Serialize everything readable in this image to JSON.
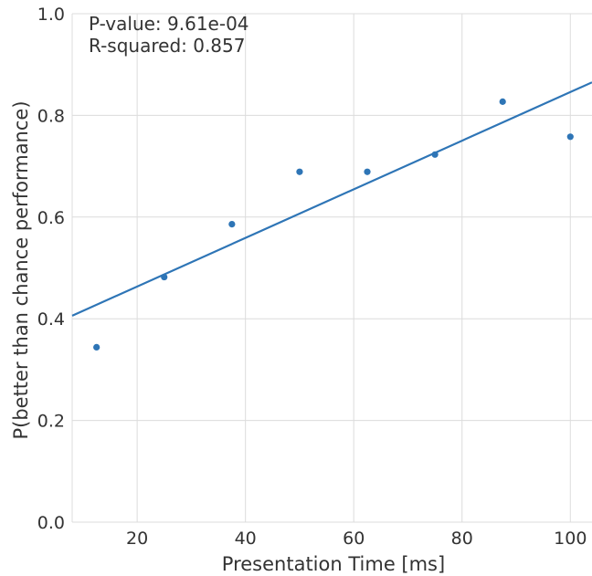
{
  "chart_data": {
    "type": "scatter",
    "xlabel": "Presentation Time [ms]",
    "ylabel": "P(better than chance performance)",
    "xlim": [
      8,
      104
    ],
    "ylim": [
      0,
      1.0
    ],
    "x_ticks": [
      20,
      40,
      60,
      80,
      100
    ],
    "x_tick_labels": [
      "20",
      "40",
      "60",
      "80",
      "100"
    ],
    "y_ticks": [
      0.0,
      0.2,
      0.4,
      0.6,
      0.8,
      1.0
    ],
    "y_tick_labels": [
      "0.0",
      "0.2",
      "0.4",
      "0.6",
      "0.8",
      "1.0"
    ],
    "grid": true,
    "annotations": {
      "p_value": "P-value: 9.61e-04",
      "r_squared": "R-squared: 0.857"
    },
    "series": [
      {
        "kind": "points",
        "x": [
          12.5,
          25,
          37.5,
          50,
          62.5,
          75,
          87.5,
          100
        ],
        "y": [
          0.344,
          0.482,
          0.586,
          0.689,
          0.689,
          0.723,
          0.827,
          0.758
        ],
        "color": "#2e75b6"
      },
      {
        "kind": "fit-line",
        "x": [
          8,
          104
        ],
        "y": [
          0.406,
          0.865
        ],
        "color": "#2e75b6"
      }
    ]
  }
}
